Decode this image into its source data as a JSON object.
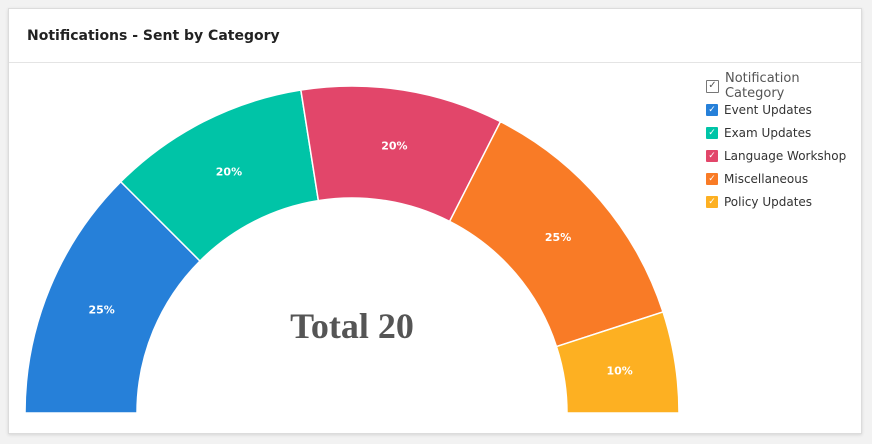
{
  "card": {
    "title": "Notifications - Sent by Category"
  },
  "chart_data": {
    "type": "pie",
    "variant": "semi-donut",
    "center_label": "Total 20",
    "legend_title": "Notification Category",
    "legend_placement": "top-right",
    "categories": [
      "Event Updates",
      "Exam Updates",
      "Language Workshop",
      "Miscellaneous",
      "Policy Updates"
    ],
    "values": [
      25,
      20,
      20,
      25,
      10
    ],
    "value_labels": [
      "25%",
      "20%",
      "20%",
      "25%",
      "10%"
    ],
    "colors": [
      "#2680d9",
      "#00c4a7",
      "#e2466a",
      "#f97b26",
      "#fdb022"
    ]
  },
  "icons": {
    "checkbox": "check-icon",
    "check_glyph": "✓"
  }
}
